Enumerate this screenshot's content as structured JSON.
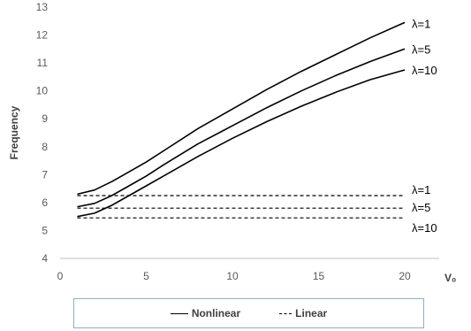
{
  "chart_data": {
    "type": "line",
    "ylabel": "Frequency",
    "xlabel": "V₀",
    "xlim": [
      0,
      22
    ],
    "ylim": [
      4,
      13
    ],
    "xticks": [
      0,
      5,
      10,
      15,
      20
    ],
    "yticks": [
      4,
      5,
      6,
      7,
      8,
      9,
      10,
      11,
      12,
      13
    ],
    "grid": false,
    "legend_position": "bottom",
    "legend": [
      {
        "label": "Nonlinear",
        "style": "solid"
      },
      {
        "label": "Linear",
        "style": "dashed"
      }
    ],
    "series": [
      {
        "group": "Nonlinear",
        "style": "solid",
        "label": "λ=1",
        "x": [
          1,
          2,
          3,
          4,
          5,
          6,
          8,
          10,
          12,
          14,
          16,
          18,
          20
        ],
        "y": [
          6.3,
          6.45,
          6.75,
          7.1,
          7.45,
          7.85,
          8.65,
          9.35,
          10.05,
          10.7,
          11.3,
          11.9,
          12.45
        ]
      },
      {
        "group": "Nonlinear",
        "style": "solid",
        "label": "λ=5",
        "x": [
          1,
          2,
          3,
          4,
          5,
          6,
          8,
          10,
          12,
          14,
          16,
          18,
          20
        ],
        "y": [
          5.85,
          5.97,
          6.25,
          6.6,
          6.95,
          7.35,
          8.1,
          8.75,
          9.4,
          10.0,
          10.55,
          11.05,
          11.5
        ]
      },
      {
        "group": "Nonlinear",
        "style": "solid",
        "label": "λ=10",
        "x": [
          1,
          2,
          3,
          4,
          5,
          6,
          8,
          10,
          12,
          14,
          16,
          18,
          20
        ],
        "y": [
          5.5,
          5.62,
          5.9,
          6.25,
          6.6,
          6.95,
          7.65,
          8.3,
          8.9,
          9.45,
          9.95,
          10.4,
          10.75
        ]
      },
      {
        "group": "Linear",
        "style": "dashed",
        "label": "λ=1",
        "x": [
          1,
          20
        ],
        "y": [
          6.25,
          6.25
        ]
      },
      {
        "group": "Linear",
        "style": "dashed",
        "label": "λ=5",
        "x": [
          1,
          20
        ],
        "y": [
          5.8,
          5.8
        ]
      },
      {
        "group": "Linear",
        "style": "dashed",
        "label": "λ=10",
        "x": [
          1,
          20
        ],
        "y": [
          5.45,
          5.45
        ]
      }
    ]
  }
}
